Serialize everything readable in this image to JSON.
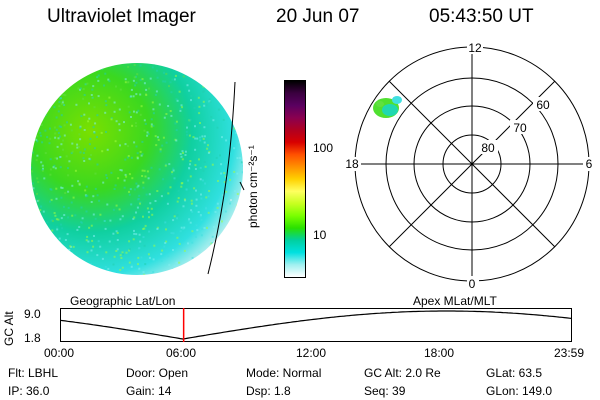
{
  "header": {
    "instrument": "Ultraviolet Imager",
    "date": "20 Jun 07",
    "time": "05:43:50 UT"
  },
  "colorbar": {
    "unit": "photon cm⁻²s⁻¹",
    "tick_labels": [
      "100",
      "10"
    ],
    "colors": [
      "#000000",
      "#3b0040",
      "#5a0060",
      "#8a0050",
      "#b00020",
      "#d80000",
      "#ff5000",
      "#ff9000",
      "#ffd000",
      "#ffff60",
      "#c8ff20",
      "#7aff00",
      "#2ae000",
      "#00d0a0",
      "#00e0e0",
      "#a0f0f0",
      "#ffffff"
    ]
  },
  "polar": {
    "mlt_labels": {
      "top": "12",
      "left": "18",
      "right": "6",
      "bottom": "0"
    },
    "lat_labels": [
      "60",
      "70",
      "80"
    ]
  },
  "timeline": {
    "left_label": "Geographic Lat/Lon",
    "right_label": "Apex MLat/MLT",
    "axis_label": "GC Alt",
    "y_ticks": [
      "9.0",
      "1.8"
    ],
    "x_ticks": [
      "00:00",
      "06:00",
      "12:00",
      "18:00",
      "23:59"
    ],
    "marker_fraction": 0.2415,
    "marker_color": "#ff0000"
  },
  "footer": {
    "row1": [
      {
        "label": "Flt: LBHL"
      },
      {
        "label": "Door: Open"
      },
      {
        "label": "Mode: Normal"
      },
      {
        "label": "GC Alt: 2.0 Re"
      },
      {
        "label": "GLat:  63.5"
      }
    ],
    "row2": [
      {
        "label": "IP: 36.0"
      },
      {
        "label": "Gain: 14"
      },
      {
        "label": "Dsp:    1.8"
      },
      {
        "label": "Seq: 39"
      },
      {
        "label": "GLon: 149.0"
      }
    ]
  }
}
